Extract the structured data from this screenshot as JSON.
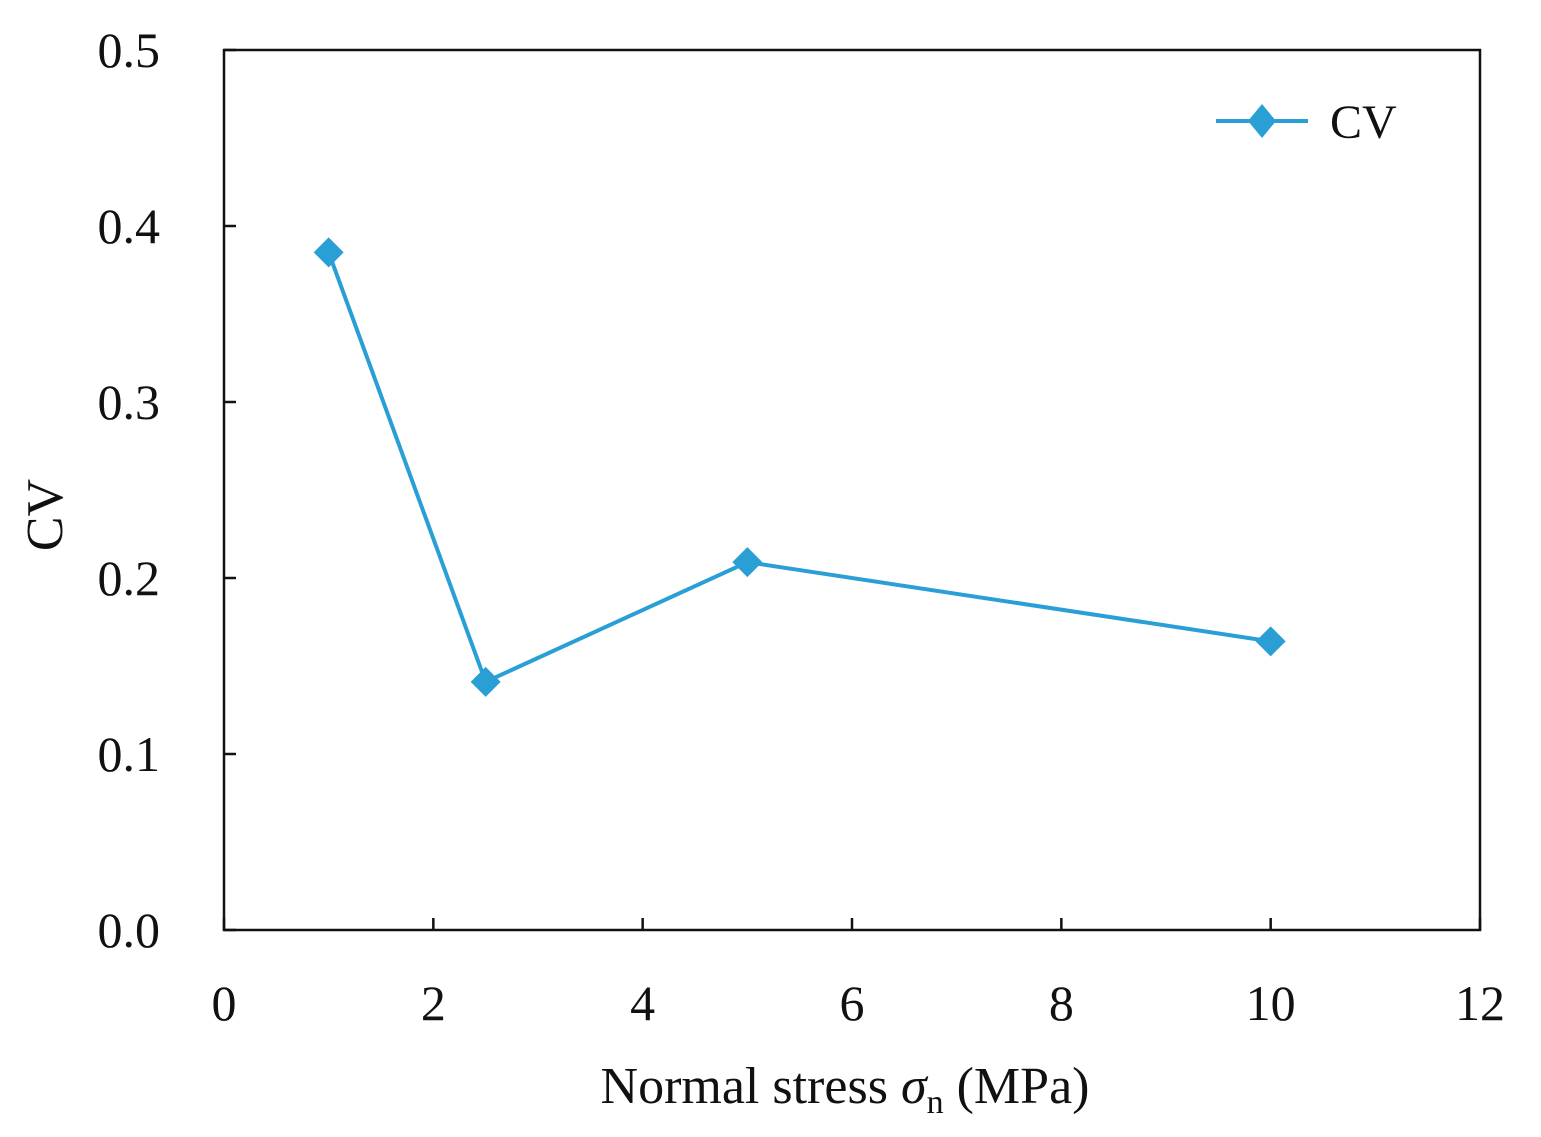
{
  "chart_data": {
    "type": "line",
    "title": "",
    "xlabel_parts": {
      "prefix": "Normal stress ",
      "symbol": "σ",
      "subscript": "n",
      "suffix": " (MPa)"
    },
    "ylabel": "CV",
    "xlim": [
      0,
      12
    ],
    "ylim": [
      0.0,
      0.5
    ],
    "xticks": [
      0,
      2,
      4,
      6,
      8,
      10,
      12
    ],
    "xtick_labels": [
      "0",
      "2",
      "4",
      "6",
      "8",
      "10",
      "12"
    ],
    "yticks": [
      0.0,
      0.1,
      0.2,
      0.3,
      0.4,
      0.5
    ],
    "ytick_labels": [
      "0.0",
      "0.1",
      "0.2",
      "0.3",
      "0.4",
      "0.5"
    ],
    "grid": false,
    "legend_position": "top-right",
    "series": [
      {
        "name": "CV",
        "marker": "diamond",
        "color": "#2a9fd6",
        "x": [
          1,
          2.5,
          5,
          10
        ],
        "y": [
          0.385,
          0.141,
          0.209,
          0.164
        ]
      }
    ]
  }
}
